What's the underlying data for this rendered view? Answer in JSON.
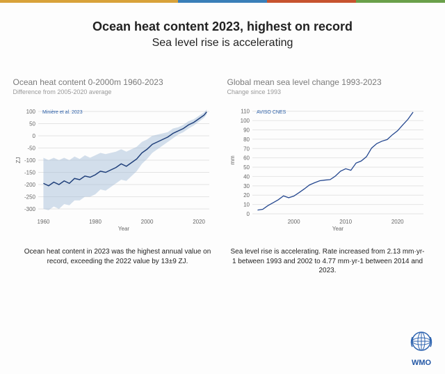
{
  "top_bar_colors": [
    "#d8a23a",
    "#d8a23a",
    "#3a7fb8",
    "#c7532f",
    "#6aa04a"
  ],
  "header": {
    "title": "Ocean heat content 2023, highest on record",
    "title_fontsize": 18,
    "subtitle": "Sea level rise is accelerating",
    "subtitle_fontsize": 16,
    "color": "#222222"
  },
  "left_chart": {
    "type": "line",
    "title": "Ocean heat content 0-2000m 1960-2023",
    "subtitle": "Difference from 2005-2020 average",
    "title_fontsize": 12,
    "subtitle_fontsize": 9,
    "title_color": "#7a7a7a",
    "legend_label": "Minière et al. 2023",
    "legend_fontsize": 7,
    "legend_color": "#2b5fa8",
    "x_label": "Year",
    "x_label_fontsize": 8,
    "y_unit": "ZJ",
    "xlim": [
      1958,
      2024
    ],
    "ylim": [
      -320,
      120
    ],
    "xticks": [
      1960,
      1980,
      2000,
      2020
    ],
    "yticks": [
      -300,
      -250,
      -200,
      -150,
      -100,
      -50,
      0,
      50,
      100
    ],
    "line_color": "#1f3f7a",
    "line_width": 1.5,
    "band_color": "#9db7d4",
    "band_opacity": 0.45,
    "grid_color": "#e4e4e4",
    "axis_color": "#666666",
    "tick_fontsize": 8,
    "background": "#fdfdfd",
    "series": [
      {
        "x": 1960,
        "y": -195,
        "lo": -300,
        "hi": -90
      },
      {
        "x": 1962,
        "y": -205,
        "lo": -305,
        "hi": -100
      },
      {
        "x": 1964,
        "y": -190,
        "lo": -290,
        "hi": -90
      },
      {
        "x": 1966,
        "y": -200,
        "lo": -300,
        "hi": -100
      },
      {
        "x": 1968,
        "y": -185,
        "lo": -280,
        "hi": -90
      },
      {
        "x": 1970,
        "y": -195,
        "lo": -285,
        "hi": -100
      },
      {
        "x": 1972,
        "y": -175,
        "lo": -265,
        "hi": -85
      },
      {
        "x": 1974,
        "y": -180,
        "lo": -265,
        "hi": -95
      },
      {
        "x": 1976,
        "y": -165,
        "lo": -250,
        "hi": -80
      },
      {
        "x": 1978,
        "y": -170,
        "lo": -250,
        "hi": -90
      },
      {
        "x": 1980,
        "y": -160,
        "lo": -240,
        "hi": -80
      },
      {
        "x": 1982,
        "y": -145,
        "lo": -220,
        "hi": -70
      },
      {
        "x": 1984,
        "y": -150,
        "lo": -225,
        "hi": -75
      },
      {
        "x": 1986,
        "y": -140,
        "lo": -210,
        "hi": -70
      },
      {
        "x": 1988,
        "y": -130,
        "lo": -195,
        "hi": -65
      },
      {
        "x": 1990,
        "y": -115,
        "lo": -180,
        "hi": -55
      },
      {
        "x": 1992,
        "y": -125,
        "lo": -185,
        "hi": -65
      },
      {
        "x": 1994,
        "y": -110,
        "lo": -165,
        "hi": -55
      },
      {
        "x": 1996,
        "y": -95,
        "lo": -145,
        "hi": -45
      },
      {
        "x": 1998,
        "y": -70,
        "lo": -115,
        "hi": -25
      },
      {
        "x": 2000,
        "y": -55,
        "lo": -95,
        "hi": -15
      },
      {
        "x": 2002,
        "y": -35,
        "lo": -70,
        "hi": 0
      },
      {
        "x": 2004,
        "y": -25,
        "lo": -55,
        "hi": 5
      },
      {
        "x": 2006,
        "y": -15,
        "lo": -40,
        "hi": 10
      },
      {
        "x": 2008,
        "y": -5,
        "lo": -25,
        "hi": 15
      },
      {
        "x": 2010,
        "y": 10,
        "lo": -10,
        "hi": 30
      },
      {
        "x": 2012,
        "y": 20,
        "lo": 5,
        "hi": 35
      },
      {
        "x": 2014,
        "y": 30,
        "lo": 15,
        "hi": 45
      },
      {
        "x": 2016,
        "y": 45,
        "lo": 30,
        "hi": 60
      },
      {
        "x": 2018,
        "y": 55,
        "lo": 42,
        "hi": 68
      },
      {
        "x": 2020,
        "y": 70,
        "lo": 58,
        "hi": 82
      },
      {
        "x": 2022,
        "y": 85,
        "lo": 74,
        "hi": 96
      },
      {
        "x": 2023,
        "y": 98,
        "lo": 88,
        "hi": 108
      }
    ]
  },
  "right_chart": {
    "type": "line",
    "title": "Global mean sea level change 1993-2023",
    "subtitle": "Change since 1993",
    "title_fontsize": 12,
    "subtitle_fontsize": 9,
    "title_color": "#7a7a7a",
    "legend_label": "AVISO CNES",
    "legend_fontsize": 7,
    "legend_color": "#2b5fa8",
    "x_label": "Year",
    "x_label_fontsize": 8,
    "y_unit": "mm",
    "xlim": [
      1992,
      2025
    ],
    "ylim": [
      0,
      115
    ],
    "xticks": [
      2000,
      2010,
      2020
    ],
    "yticks": [
      0,
      10,
      20,
      30,
      40,
      50,
      60,
      70,
      80,
      90,
      100,
      110
    ],
    "line_color": "#24478f",
    "line_width": 1.3,
    "grid_color": "#e4e4e4",
    "axis_color": "#666666",
    "tick_fontsize": 8,
    "background": "#fdfdfd",
    "series": [
      {
        "x": 1993,
        "y": 4
      },
      {
        "x": 1994,
        "y": 6
      },
      {
        "x": 1995,
        "y": 10
      },
      {
        "x": 1996,
        "y": 12
      },
      {
        "x": 1997,
        "y": 14
      },
      {
        "x": 1998,
        "y": 18
      },
      {
        "x": 1999,
        "y": 17
      },
      {
        "x": 2000,
        "y": 20
      },
      {
        "x": 2001,
        "y": 24
      },
      {
        "x": 2002,
        "y": 27
      },
      {
        "x": 2003,
        "y": 30
      },
      {
        "x": 2004,
        "y": 32
      },
      {
        "x": 2005,
        "y": 35
      },
      {
        "x": 2006,
        "y": 37
      },
      {
        "x": 2007,
        "y": 38
      },
      {
        "x": 2008,
        "y": 41
      },
      {
        "x": 2009,
        "y": 45
      },
      {
        "x": 2010,
        "y": 47
      },
      {
        "x": 2011,
        "y": 46
      },
      {
        "x": 2012,
        "y": 55
      },
      {
        "x": 2013,
        "y": 58
      },
      {
        "x": 2014,
        "y": 62
      },
      {
        "x": 2015,
        "y": 70
      },
      {
        "x": 2016,
        "y": 74
      },
      {
        "x": 2017,
        "y": 77
      },
      {
        "x": 2018,
        "y": 80
      },
      {
        "x": 2019,
        "y": 86
      },
      {
        "x": 2020,
        "y": 90
      },
      {
        "x": 2021,
        "y": 95
      },
      {
        "x": 2022,
        "y": 100
      },
      {
        "x": 2023,
        "y": 108
      }
    ]
  },
  "captions": {
    "left": "Ocean heat content in 2023 was the highest annual value on record, exceeding the 2022 value by 13±9 ZJ.",
    "right": "Sea level rise is accelerating. Rate increased from 2.13 mm·yr-1 between 1993 and 2002 to 4.77 mm·yr-1 between 2014 and 2023.",
    "fontsize": 10
  },
  "logo": {
    "text": "WMO",
    "text_color": "#2458a6",
    "globe_color": "#2e64b0",
    "fontsize": 11
  }
}
